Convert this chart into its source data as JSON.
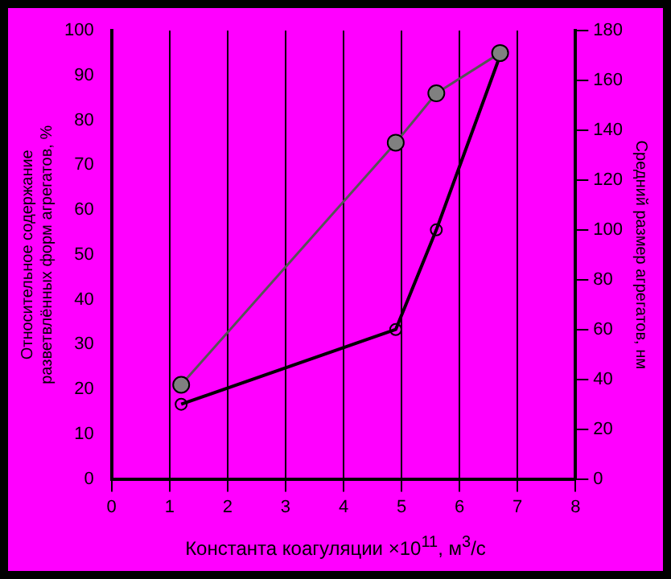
{
  "chart_data": {
    "type": "line",
    "xlabel": "Константа коагуляции ×10$^{11}$, м$^{3}$/с",
    "ylabel": "Относительное содержание\nразветвлённых форм агрегатов, %",
    "y2label": "Средний размер агрегатов, нм",
    "x": [
      1.2,
      4.9,
      5.6,
      6.7
    ],
    "series": [
      {
        "color": "#555555",
        "values": [
          21,
          75,
          86,
          95
        ]
      },
      {
        "color": "#000000",
        "axis": "y2",
        "values": [
          30,
          60,
          100,
          170
        ]
      }
    ],
    "xlim": [
      0,
      8
    ],
    "xticks": [
      0,
      1,
      2,
      3,
      4,
      5,
      6,
      7,
      8
    ],
    "ylim": [
      0,
      100
    ],
    "yticks": [
      0,
      10,
      20,
      30,
      40,
      50,
      60,
      70,
      80,
      90,
      100
    ],
    "y2lim": [
      0,
      180
    ],
    "y2ticks": [
      0,
      20,
      40,
      60,
      80,
      100,
      120,
      140,
      160,
      180
    ],
    "grid": "x",
    "marker": "circle",
    "line_style": "solid"
  }
}
